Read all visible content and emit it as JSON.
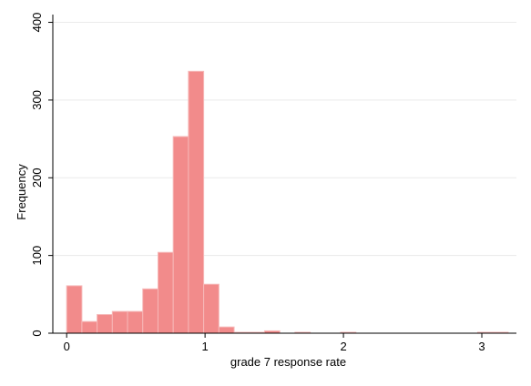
{
  "chart_data": {
    "type": "bar",
    "title": "",
    "xlabel": "grade 7 response rate",
    "ylabel": "Frequency",
    "xlim": [
      -0.1,
      3.25
    ],
    "ylim": [
      0,
      410
    ],
    "x_ticks": [
      0,
      1,
      2,
      3
    ],
    "y_ticks": [
      0,
      100,
      200,
      300,
      400
    ],
    "grid": "horizontal",
    "bin_width": 0.11,
    "bar_color": "#f28b8b",
    "bar_edge_color": "#f6b8b8",
    "bins": [
      {
        "start": 0.0,
        "count": 61
      },
      {
        "start": 0.11,
        "count": 15
      },
      {
        "start": 0.22,
        "count": 24
      },
      {
        "start": 0.33,
        "count": 28
      },
      {
        "start": 0.44,
        "count": 28
      },
      {
        "start": 0.55,
        "count": 57
      },
      {
        "start": 0.66,
        "count": 104
      },
      {
        "start": 0.77,
        "count": 253
      },
      {
        "start": 0.88,
        "count": 337
      },
      {
        "start": 0.99,
        "count": 63
      },
      {
        "start": 1.1,
        "count": 8
      },
      {
        "start": 1.21,
        "count": 1
      },
      {
        "start": 1.32,
        "count": 1
      },
      {
        "start": 1.43,
        "count": 3
      },
      {
        "start": 1.54,
        "count": 0
      },
      {
        "start": 1.65,
        "count": 1
      },
      {
        "start": 1.76,
        "count": 0
      },
      {
        "start": 1.87,
        "count": 0
      },
      {
        "start": 1.98,
        "count": 1
      },
      {
        "start": 2.09,
        "count": 0
      },
      {
        "start": 2.2,
        "count": 0
      },
      {
        "start": 2.31,
        "count": 0
      },
      {
        "start": 2.42,
        "count": 0
      },
      {
        "start": 2.53,
        "count": 0
      },
      {
        "start": 2.64,
        "count": 0
      },
      {
        "start": 2.75,
        "count": 0
      },
      {
        "start": 2.86,
        "count": 0
      },
      {
        "start": 2.97,
        "count": 1
      },
      {
        "start": 3.08,
        "count": 1
      }
    ]
  }
}
